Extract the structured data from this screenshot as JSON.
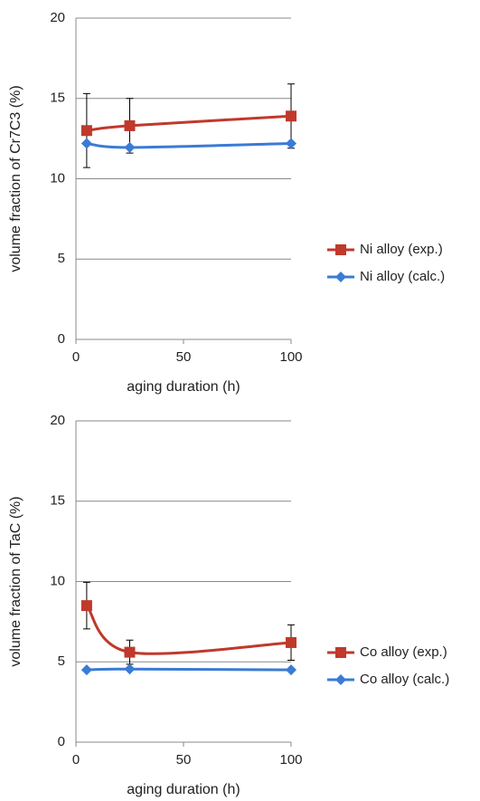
{
  "chart_data": [
    {
      "type": "line",
      "x_label": "aging duration (h)",
      "y_label": "volume fraction of Cr7C3 (%)",
      "x": [
        5,
        25,
        100
      ],
      "xlim": [
        0,
        100
      ],
      "xticks": [
        0,
        50,
        100
      ],
      "ylim": [
        0,
        20
      ],
      "yticks": [
        0,
        5,
        10,
        15,
        20
      ],
      "grid": true,
      "legend": "right",
      "series": [
        {
          "name": "Ni alloy (exp.)",
          "color": "#c0392b",
          "marker": "square",
          "values": [
            13.0,
            13.3,
            13.9
          ],
          "errors": [
            2.3,
            1.7,
            2.0
          ]
        },
        {
          "name": "Ni alloy (calc.)",
          "color": "#3a7bd5",
          "marker": "diamond",
          "values": [
            12.2,
            11.95,
            12.2
          ]
        }
      ]
    },
    {
      "type": "line",
      "x_label": "aging duration (h)",
      "y_label": "volume fraction of TaC (%)",
      "x": [
        5,
        25,
        100
      ],
      "xlim": [
        0,
        100
      ],
      "xticks": [
        0,
        50,
        100
      ],
      "ylim": [
        0,
        20
      ],
      "yticks": [
        0,
        5,
        10,
        15,
        20
      ],
      "grid": true,
      "legend": "right",
      "series": [
        {
          "name": "Co alloy (exp.)",
          "color": "#c0392b",
          "marker": "square",
          "values": [
            8.5,
            5.6,
            6.2
          ],
          "errors": [
            1.45,
            0.75,
            1.1
          ]
        },
        {
          "name": "Co alloy (calc.)",
          "color": "#3a7bd5",
          "marker": "diamond",
          "values": [
            4.5,
            4.55,
            4.5
          ]
        }
      ]
    }
  ]
}
